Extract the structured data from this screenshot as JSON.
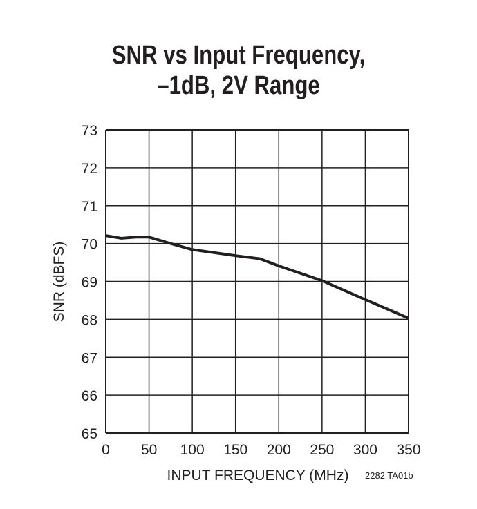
{
  "chart_data": {
    "type": "line",
    "title_line1": "SNR vs Input Frequency,",
    "title_line2": "–1dB, 2V Range",
    "xlabel": "INPUT FREQUENCY (MHz)",
    "ylabel": "SNR (dBFS)",
    "note": "2282 TA01b",
    "xlim": [
      0,
      350
    ],
    "ylim": [
      65,
      73
    ],
    "xticks": [
      0,
      50,
      100,
      150,
      200,
      250,
      300,
      350
    ],
    "yticks": [
      65,
      66,
      67,
      68,
      69,
      70,
      71,
      72,
      73
    ],
    "grid": true,
    "series": [
      {
        "x": [
          0,
          18,
          35,
          50,
          75,
          100,
          150,
          178,
          200,
          250,
          300,
          350
        ],
        "y": [
          70.21,
          70.14,
          70.17,
          70.17,
          70.0,
          69.84,
          69.68,
          69.6,
          69.41,
          69.02,
          68.52,
          68.03
        ]
      }
    ],
    "color": "#231f20"
  }
}
